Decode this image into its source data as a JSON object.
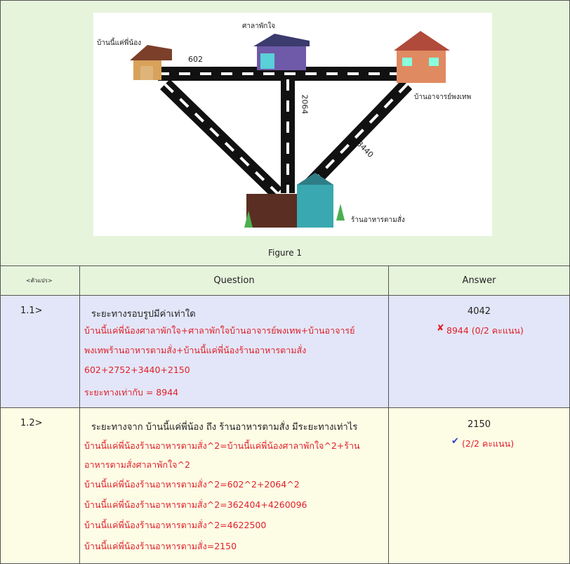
{
  "figure": {
    "labels": {
      "house_left": "บ้านนี้แค่พี่น้อง",
      "pavilion": "ศาลาพักใจ",
      "house_right": "บ้านอาจารย์พงเทพ",
      "restaurant": "ร้านอาหารตามสั่ง"
    },
    "distances": [
      602,
      2064,
      3440
    ],
    "caption": "Figure 1"
  },
  "table": {
    "headers": [
      "<ตัวแปร>",
      "Question",
      "Answer"
    ],
    "rows": [
      {
        "number": "1.1>",
        "question": "ระยะทางรอบรูปมีค่าเท่าใด",
        "work": [
          "บ้านนี้แค่พี่น้องศาลาพักใจ+ศาลาพักใจบ้านอาจารย์พงเทพ+บ้านอาจารย์",
          "พงเทพร้านอาหารตามสั่ง+บ้านนี้แค่พี่น้องร้านอาหารตามสั่ง",
          "602+2752+3440+2150",
          "ระยะทางเท่ากับ = 8944"
        ],
        "answer": "4042",
        "feedback": "8944 (0/2 คะแนน)"
      },
      {
        "number": "1.2>",
        "question": "ระยะทางจาก บ้านนี้แค่พี่น้อง ถึง ร้านอาหารตามสั่ง มีระยะทางเท่าไร",
        "work": [
          "บ้านนี้แค่พี่น้องร้านอาหารตามสั่ง^2=บ้านนี้แค่พี่น้องศาลาพักใจ^2+ร้าน",
          "อาหารตามสั่งศาลาพักใจ^2",
          "บ้านนี้แค่พี่น้องร้านอาหารตามสั่ง^2=602^2+2064^2",
          "บ้านนี้แค่พี่น้องร้านอาหารตามสั่ง^2=362404+4260096",
          "บ้านนี้แค่พี่น้องร้านอาหารตามสั่ง^2=4622500",
          "บ้านนี้แค่พี่น้องร้านอาหารตามสั่ง=2150"
        ],
        "answer": "2150",
        "feedback": "(2/2 คะแนน)"
      }
    ]
  }
}
